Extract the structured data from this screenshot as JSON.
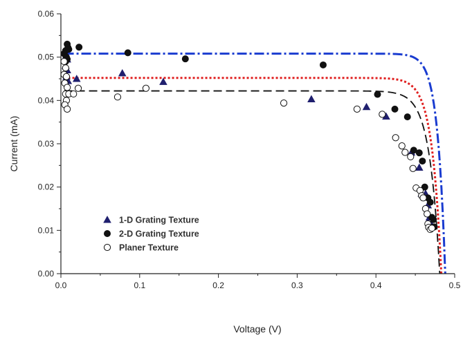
{
  "chart_data": {
    "type": "scatter",
    "xlabel": "Voltage (V)",
    "ylabel": "Current (mA)",
    "xlim": [
      0.0,
      0.5
    ],
    "ylim": [
      0.0,
      0.06
    ],
    "x_ticks": [
      "0.0",
      "0.1",
      "0.2",
      "0.3",
      "0.4",
      "0.5"
    ],
    "y_ticks": [
      "0.00",
      "0.01",
      "0.02",
      "0.03",
      "0.04",
      "0.05",
      "0.06"
    ],
    "grid": false,
    "legend_position": "bottom-left",
    "legend": [
      {
        "label": "1-D Grating Texture",
        "marker": "filled-triangle",
        "color": "#1f1f6e"
      },
      {
        "label": "2-D Grating Texture",
        "marker": "filled-circle",
        "color": "#111111"
      },
      {
        "label": "Planer Texture",
        "marker": "open-circle",
        "color": "#111111"
      }
    ],
    "series": [
      {
        "name": "1-D Grating Texture",
        "marker": "filled-triangle",
        "color": "#1f1f6e",
        "points": [
          [
            0.005,
            0.051
          ],
          [
            0.007,
            0.0505
          ],
          [
            0.008,
            0.0495
          ],
          [
            0.006,
            0.048
          ],
          [
            0.008,
            0.047
          ],
          [
            0.007,
            0.0455
          ],
          [
            0.009,
            0.0445
          ],
          [
            0.02,
            0.045
          ],
          [
            0.078,
            0.0463
          ],
          [
            0.13,
            0.0443
          ],
          [
            0.318,
            0.0403
          ],
          [
            0.388,
            0.0385
          ],
          [
            0.413,
            0.0363
          ],
          [
            0.445,
            0.028
          ],
          [
            0.455,
            0.0245
          ],
          [
            0.458,
            0.0185
          ],
          [
            0.463,
            0.0185
          ],
          [
            0.466,
            0.0158
          ],
          [
            0.468,
            0.013
          ],
          [
            0.47,
            0.0115
          ]
        ]
      },
      {
        "name": "2-D Grating Texture",
        "marker": "filled-circle",
        "color": "#111111",
        "points": [
          [
            0.004,
            0.0508
          ],
          [
            0.006,
            0.0515
          ],
          [
            0.008,
            0.053
          ],
          [
            0.009,
            0.0522
          ],
          [
            0.01,
            0.0518
          ],
          [
            0.007,
            0.05
          ],
          [
            0.008,
            0.0495
          ],
          [
            0.006,
            0.049
          ],
          [
            0.023,
            0.0523
          ],
          [
            0.085,
            0.051
          ],
          [
            0.158,
            0.0496
          ],
          [
            0.333,
            0.0482
          ],
          [
            0.402,
            0.0414
          ],
          [
            0.424,
            0.038
          ],
          [
            0.44,
            0.0362
          ],
          [
            0.448,
            0.0285
          ],
          [
            0.455,
            0.0279
          ],
          [
            0.459,
            0.026
          ],
          [
            0.462,
            0.02
          ],
          [
            0.466,
            0.0175
          ],
          [
            0.469,
            0.0165
          ],
          [
            0.471,
            0.013
          ],
          [
            0.473,
            0.0125
          ],
          [
            0.474,
            0.0108
          ]
        ]
      },
      {
        "name": "Planer Texture",
        "marker": "open-circle",
        "color": "#111111",
        "points": [
          [
            0.004,
            0.049
          ],
          [
            0.006,
            0.0475
          ],
          [
            0.004,
            0.046
          ],
          [
            0.007,
            0.0455
          ],
          [
            0.005,
            0.044
          ],
          [
            0.008,
            0.043
          ],
          [
            0.006,
            0.0415
          ],
          [
            0.007,
            0.04
          ],
          [
            0.005,
            0.039
          ],
          [
            0.008,
            0.038
          ],
          [
            0.01,
            0.0415
          ],
          [
            0.016,
            0.0415
          ],
          [
            0.022,
            0.0428
          ],
          [
            0.072,
            0.0408
          ],
          [
            0.108,
            0.0428
          ],
          [
            0.283,
            0.0394
          ],
          [
            0.376,
            0.038
          ],
          [
            0.408,
            0.0368
          ],
          [
            0.425,
            0.0314
          ],
          [
            0.433,
            0.0295
          ],
          [
            0.437,
            0.028
          ],
          [
            0.444,
            0.027
          ],
          [
            0.447,
            0.0243
          ],
          [
            0.451,
            0.0198
          ],
          [
            0.456,
            0.0192
          ],
          [
            0.458,
            0.018
          ],
          [
            0.46,
            0.0175
          ],
          [
            0.463,
            0.015
          ],
          [
            0.465,
            0.0138
          ],
          [
            0.466,
            0.0115
          ],
          [
            0.467,
            0.0107
          ],
          [
            0.469,
            0.0102
          ],
          [
            0.471,
            0.0105
          ]
        ]
      }
    ],
    "fit_curves": [
      {
        "color": "#1a3cd0",
        "style": "dash-dot",
        "isc": 0.0508,
        "voc": 0.488,
        "nvt": 0.0098
      },
      {
        "color": "#e02020",
        "style": "dotted",
        "isc": 0.0452,
        "voc": 0.483,
        "nvt": 0.0117
      },
      {
        "color": "#111111",
        "style": "dashed",
        "isc": 0.0422,
        "voc": 0.481,
        "nvt": 0.0128
      }
    ]
  }
}
